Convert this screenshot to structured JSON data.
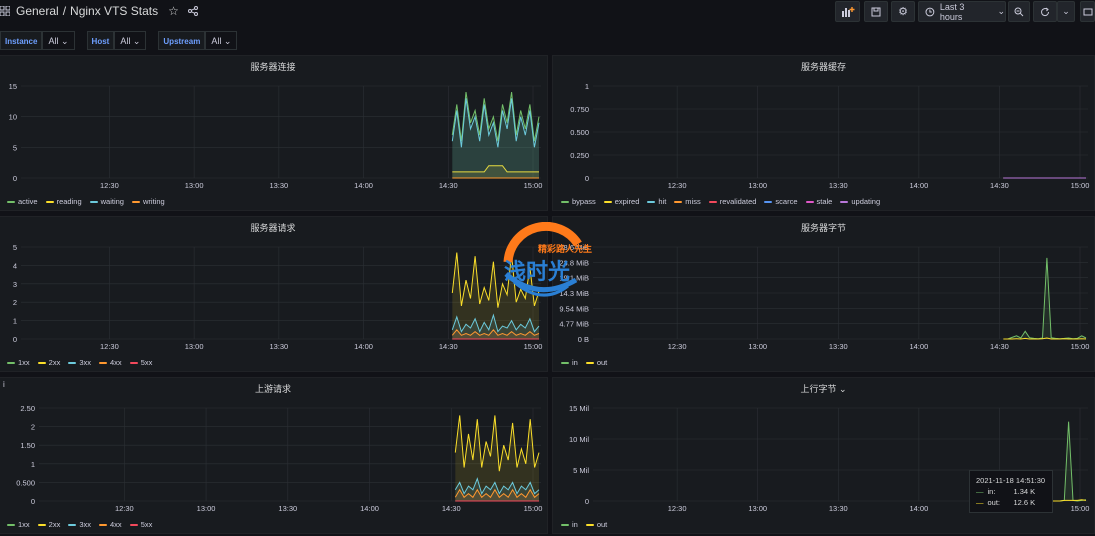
{
  "header": {
    "folder": "General",
    "separator": "/",
    "dashboard_title": "Nginx VTS Stats",
    "time_range": "Last 3 hours",
    "icons": [
      "apps-icon",
      "star-icon",
      "share-icon",
      "add-panel-icon",
      "save-icon",
      "settings-icon",
      "clock-icon",
      "chevron-down-icon",
      "zoom-out-icon",
      "refresh-icon",
      "chevron-down-icon",
      "tv-icon"
    ]
  },
  "variables": [
    {
      "label": "Instance",
      "value": "All"
    },
    {
      "label": "Host",
      "value": "All"
    },
    {
      "label": "Upstream",
      "value": "All"
    }
  ],
  "panels": {
    "conn": {
      "title": "服务器连接"
    },
    "cache": {
      "title": "服务器缓存"
    },
    "req": {
      "title": "服务器请求"
    },
    "bytes": {
      "title": "服务器字节"
    },
    "upreq": {
      "title": "上游请求"
    },
    "upbytes": {
      "title": "上行字节 ⌄"
    }
  },
  "tooltip": {
    "time": "2021-11-18 14:51:30",
    "in_label": "in:",
    "in_value": "1.34 K",
    "out_label": "out:",
    "out_value": "12.6 K"
  },
  "watermark": {
    "text1": "精彩路人先生",
    "text2": "浅时光"
  },
  "colors": {
    "green": "#73bf69",
    "yellow": "#fade2a",
    "blue": "#5794f2",
    "cyan": "#8ab8ff",
    "orange": "#ff9830",
    "red": "#f2495c",
    "purple": "#b877d9",
    "teal": "#6ccadc",
    "brand": "#ff7a1a"
  },
  "chart_data": [
    {
      "id": "conn",
      "type": "line",
      "title": "服务器连接",
      "x_ticks": [
        "12:30",
        "13:00",
        "13:30",
        "14:00",
        "14:30",
        "15:00"
      ],
      "y_ticks": [
        "15",
        "10",
        "5",
        "0"
      ],
      "ylim": [
        0,
        15
      ],
      "series": [
        {
          "name": "active",
          "color": "#73bf69",
          "values": [
            7,
            12,
            6,
            14,
            9,
            11,
            7,
            13,
            8,
            10,
            6,
            12,
            9,
            14,
            7,
            11,
            8,
            12,
            6,
            10
          ]
        },
        {
          "name": "reading",
          "color": "#fade2a",
          "values": [
            1,
            1,
            1,
            1,
            1,
            1,
            1,
            1,
            2,
            2,
            2,
            2,
            1,
            1,
            1,
            1,
            1,
            1,
            1,
            1
          ]
        },
        {
          "name": "waiting",
          "color": "#6ccadc",
          "values": [
            6,
            11,
            5,
            13,
            8,
            10,
            6,
            12,
            7,
            9,
            5,
            11,
            8,
            13,
            6,
            10,
            7,
            11,
            5,
            9
          ]
        },
        {
          "name": "writing",
          "color": "#ff9830",
          "values": [
            0,
            0,
            0,
            0,
            0,
            0,
            0,
            0,
            0,
            0,
            0,
            0,
            0,
            0,
            0,
            0,
            0,
            0,
            0,
            0
          ]
        }
      ]
    },
    {
      "id": "cache",
      "type": "line",
      "title": "服务器缓存",
      "x_ticks": [
        "12:30",
        "13:00",
        "13:30",
        "14:00",
        "14:30",
        "15:00"
      ],
      "y_ticks": [
        "1",
        "0.750",
        "0.500",
        "0.250",
        "0"
      ],
      "ylim": [
        0,
        1
      ],
      "series": [
        {
          "name": "bypass",
          "color": "#73bf69",
          "values": [
            0,
            0
          ]
        },
        {
          "name": "expired",
          "color": "#fade2a",
          "values": [
            0,
            0
          ]
        },
        {
          "name": "hit",
          "color": "#6ccadc",
          "values": [
            0,
            0
          ]
        },
        {
          "name": "miss",
          "color": "#ff9830",
          "values": [
            0,
            0
          ]
        },
        {
          "name": "revalidated",
          "color": "#f2495c",
          "values": [
            0,
            0
          ]
        },
        {
          "name": "scarce",
          "color": "#5794f2",
          "values": [
            0,
            0
          ]
        },
        {
          "name": "stale",
          "color": "#e058c8",
          "values": [
            0,
            0
          ]
        },
        {
          "name": "updating",
          "color": "#b877d9",
          "values": [
            0,
            0
          ]
        }
      ]
    },
    {
      "id": "req",
      "type": "line",
      "title": "服务器请求",
      "x_ticks": [
        "12:30",
        "13:00",
        "13:30",
        "14:00",
        "14:30",
        "15:00"
      ],
      "y_ticks": [
        "5",
        "4",
        "3",
        "2",
        "1",
        "0"
      ],
      "ylim": [
        0,
        5
      ],
      "series": [
        {
          "name": "1xx",
          "color": "#73bf69",
          "values": [
            0,
            0,
            0,
            0,
            0,
            0,
            0,
            0,
            0,
            0,
            0,
            0,
            0,
            0,
            0,
            0,
            0,
            0,
            0,
            0
          ]
        },
        {
          "name": "2xx",
          "color": "#fade2a",
          "values": [
            2.5,
            4.7,
            1.8,
            3.2,
            2.2,
            4.5,
            1.9,
            2.8,
            2.1,
            4.2,
            1.7,
            3.0,
            2.4,
            4.6,
            2.0,
            2.7,
            2.2,
            3.9,
            1.8,
            2.6
          ]
        },
        {
          "name": "3xx",
          "color": "#6ccadc",
          "values": [
            0.5,
            1.2,
            0.4,
            0.8,
            0.6,
            1.1,
            0.4,
            0.9,
            0.5,
            1.3,
            0.4,
            0.7,
            0.6,
            1.0,
            0.5,
            0.8,
            0.6,
            1.1,
            0.4,
            0.7
          ]
        },
        {
          "name": "4xx",
          "color": "#ff9830",
          "values": [
            0.2,
            0.5,
            0.2,
            0.3,
            0.2,
            0.4,
            0.2,
            0.3,
            0.2,
            0.5,
            0.2,
            0.3,
            0.2,
            0.4,
            0.2,
            0.3,
            0.2,
            0.4,
            0.2,
            0.3
          ]
        },
        {
          "name": "5xx",
          "color": "#f2495c",
          "values": [
            0,
            0,
            0,
            0,
            0,
            0,
            0,
            0,
            0,
            0,
            0,
            0,
            0,
            0,
            0,
            0,
            0,
            0,
            0,
            0
          ]
        }
      ]
    },
    {
      "id": "bytes",
      "type": "line",
      "title": "服务器字节",
      "x_ticks": [
        "12:30",
        "13:00",
        "13:30",
        "14:00",
        "14:30",
        "15:00"
      ],
      "y_ticks": [
        "28.6 MiB",
        "23.8 MiB",
        "19.1 MiB",
        "14.3 MiB",
        "9.54 MiB",
        "4.77 MiB",
        "0 B"
      ],
      "ylim": [
        0,
        28.6
      ],
      "series": [
        {
          "name": "in",
          "color": "#73bf69",
          "values": [
            0,
            0,
            0.5,
            1.0,
            0.3,
            2.4,
            0.4,
            0.2,
            0.1,
            0.3,
            25.2,
            0.4,
            0.2,
            0.1,
            0.2,
            0.3,
            0.1,
            0.2,
            1.0,
            0.3
          ]
        },
        {
          "name": "out",
          "color": "#fade2a",
          "values": [
            0,
            0,
            0,
            0.1,
            0,
            0.2,
            0,
            0,
            0,
            0.1,
            0.3,
            0,
            0,
            0,
            0.1,
            0,
            0,
            0,
            0.1,
            0
          ]
        }
      ]
    },
    {
      "id": "upreq",
      "type": "line",
      "title": "上游请求",
      "x_ticks": [
        "12:30",
        "13:00",
        "13:30",
        "14:00",
        "14:30",
        "15:00"
      ],
      "y_ticks": [
        "2.50",
        "2",
        "1.50",
        "1",
        "0.500",
        "0"
      ],
      "ylim": [
        0,
        2.5
      ],
      "series": [
        {
          "name": "1xx",
          "color": "#73bf69",
          "values": [
            0,
            0,
            0,
            0,
            0,
            0,
            0,
            0,
            0,
            0,
            0,
            0,
            0,
            0,
            0,
            0,
            0,
            0,
            0,
            0
          ]
        },
        {
          "name": "2xx",
          "color": "#fade2a",
          "values": [
            1.3,
            2.3,
            0.9,
            1.8,
            1.1,
            2.2,
            0.9,
            1.6,
            1.2,
            2.3,
            0.8,
            1.5,
            1.1,
            2.1,
            0.9,
            1.4,
            1.0,
            2.2,
            0.9,
            1.3
          ]
        },
        {
          "name": "3xx",
          "color": "#6ccadc",
          "values": [
            0.3,
            0.5,
            0.2,
            0.4,
            0.3,
            0.6,
            0.2,
            0.4,
            0.3,
            0.5,
            0.2,
            0.4,
            0.3,
            0.5,
            0.2,
            0.4,
            0.3,
            0.5,
            0.2,
            0.3
          ]
        },
        {
          "name": "4xx",
          "color": "#ff9830",
          "values": [
            0.1,
            0.3,
            0.1,
            0.2,
            0.1,
            0.3,
            0.1,
            0.2,
            0.1,
            0.3,
            0.1,
            0.2,
            0.1,
            0.3,
            0.1,
            0.2,
            0.1,
            0.3,
            0.1,
            0.2
          ]
        },
        {
          "name": "5xx",
          "color": "#f2495c",
          "values": [
            0,
            0,
            0,
            0,
            0,
            0,
            0,
            0,
            0,
            0,
            0,
            0,
            0,
            0,
            0,
            0,
            0,
            0,
            0,
            0
          ]
        }
      ]
    },
    {
      "id": "upbytes",
      "type": "line",
      "title": "上行字节",
      "x_ticks": [
        "12:30",
        "13:00",
        "13:30",
        "14:00",
        "14:30",
        "15:00"
      ],
      "y_ticks": [
        "15 Mil",
        "10 Mil",
        "5 Mil",
        "0"
      ],
      "ylim": [
        0,
        15
      ],
      "series": [
        {
          "name": "in",
          "color": "#73bf69",
          "values": [
            0,
            0,
            0,
            0,
            0,
            0,
            0,
            0,
            0,
            0,
            0,
            0,
            0,
            0,
            0.1,
            12.8,
            0.1,
            0,
            0.1,
            0.2
          ]
        },
        {
          "name": "out",
          "color": "#fade2a",
          "values": [
            0,
            0,
            0,
            0,
            0,
            0,
            0,
            0,
            0,
            0,
            0,
            0,
            0,
            0,
            0.1,
            0.1,
            0.1,
            0.1,
            0.2,
            0.1
          ]
        }
      ]
    }
  ]
}
